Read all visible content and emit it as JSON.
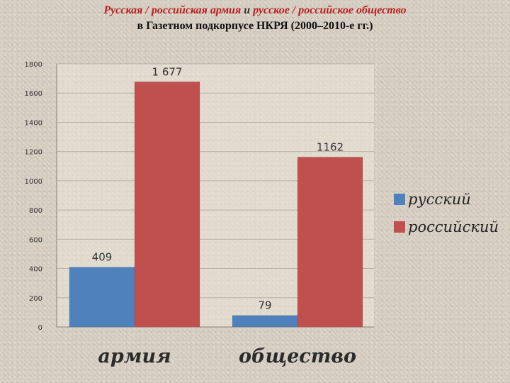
{
  "title": {
    "line1_part1": "Русская / российская армия",
    "line1_conj": " и ",
    "line1_part2": "русское / российское общество",
    "line2": "в Газетном подкорпусе НКРЯ (2000–2010-е гг.)"
  },
  "colors": {
    "title_accent": "#b81f1f",
    "series_russkiy": "#4f81bd",
    "series_rossiyskiy": "#c0504d",
    "plot_background": "#ebe5da",
    "gridline": "#b8b2a6"
  },
  "chart_data": {
    "type": "bar",
    "categories": [
      "армия",
      "общество"
    ],
    "series": [
      {
        "name": "русский",
        "color": "#4f81bd",
        "values": [
          409,
          79
        ],
        "labels": [
          "409",
          "79"
        ]
      },
      {
        "name": "российский",
        "color": "#c0504d",
        "values": [
          1677,
          1162
        ],
        "labels": [
          "1 677",
          "1162"
        ]
      }
    ],
    "ylim": [
      0,
      1800
    ],
    "yticks": [
      0,
      200,
      400,
      600,
      800,
      1000,
      1200,
      1400,
      1600,
      1800
    ],
    "ytick_labels": [
      "0",
      "200",
      "400",
      "600",
      "800",
      "1000",
      "1200",
      "1400",
      "1600",
      "1800"
    ],
    "grid": true,
    "legend_position": "right"
  }
}
